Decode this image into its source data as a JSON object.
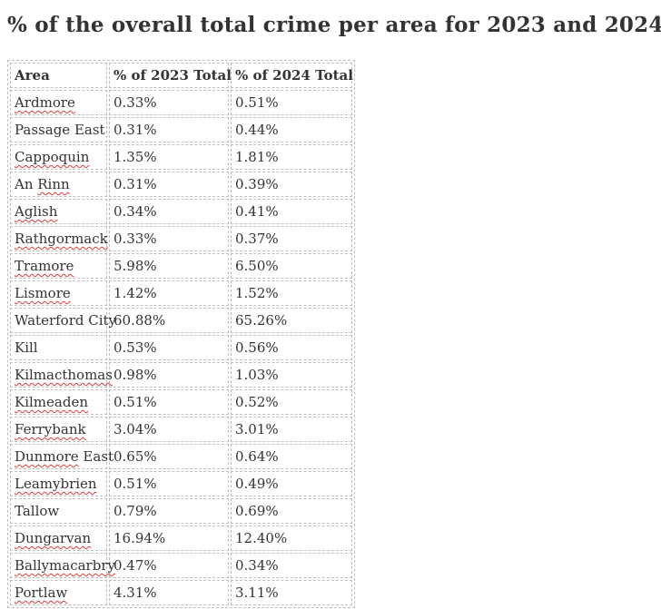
{
  "page": {
    "title": "% of the overall total crime per area for 2023 and 2024"
  },
  "table": {
    "columns": [
      "Area",
      "% of 2023 Total",
      "% of 2024 Total"
    ],
    "rows": [
      {
        "area": "Ardmore",
        "squiggle": "Ardmore",
        "pct_2023": "0.33%",
        "pct_2024": "0.51%"
      },
      {
        "area": "Passage East",
        "squiggle": "",
        "pct_2023": "0.31%",
        "pct_2024": "0.44%"
      },
      {
        "area": "Cappoquin",
        "squiggle": "Cappoquin",
        "pct_2023": "1.35%",
        "pct_2024": "1.81%"
      },
      {
        "area": "An Rinn",
        "squiggle": "Rinn",
        "pct_2023": "0.31%",
        "pct_2024": "0.39%"
      },
      {
        "area": "Aglish",
        "squiggle": "Aglish",
        "pct_2023": "0.34%",
        "pct_2024": "0.41%"
      },
      {
        "area": "Rathgormack",
        "squiggle": "Rathgormack",
        "pct_2023": "0.33%",
        "pct_2024": "0.37%"
      },
      {
        "area": "Tramore",
        "squiggle": "Tramore",
        "pct_2023": "5.98%",
        "pct_2024": "6.50%"
      },
      {
        "area": "Lismore",
        "squiggle": "Lismore",
        "pct_2023": "1.42%",
        "pct_2024": "1.52%"
      },
      {
        "area": "Waterford City",
        "squiggle": "",
        "pct_2023": "60.88%",
        "pct_2024": "65.26%"
      },
      {
        "area": "Kill",
        "squiggle": "",
        "pct_2023": "0.53%",
        "pct_2024": "0.56%"
      },
      {
        "area": "Kilmacthomas",
        "squiggle": "Kilmacthomas",
        "pct_2023": "0.98%",
        "pct_2024": "1.03%"
      },
      {
        "area": "Kilmeaden",
        "squiggle": "Kilmeaden",
        "pct_2023": "0.51%",
        "pct_2024": "0.52%"
      },
      {
        "area": "Ferrybank",
        "squiggle": "Ferrybank",
        "pct_2023": "3.04%",
        "pct_2024": "3.01%"
      },
      {
        "area": "Dunmore East",
        "squiggle": "Dunmore",
        "pct_2023": "0.65%",
        "pct_2024": "0.64%"
      },
      {
        "area": "Leamybrien",
        "squiggle": "Leamybrien",
        "pct_2023": "0.51%",
        "pct_2024": "0.49%"
      },
      {
        "area": "Tallow",
        "squiggle": "",
        "pct_2023": "0.79%",
        "pct_2024": "0.69%"
      },
      {
        "area": "Dungarvan",
        "squiggle": "Dungarvan",
        "pct_2023": "16.94%",
        "pct_2024": "12.40%"
      },
      {
        "area": "Ballymacarbry",
        "squiggle": "Ballymacarbry",
        "pct_2023": "0.47%",
        "pct_2024": "0.34%"
      },
      {
        "area": "Portlaw",
        "squiggle": "Portlaw",
        "pct_2023": "4.31%",
        "pct_2024": "3.11%"
      }
    ]
  },
  "colors": {
    "background": "#ffffff",
    "heading_text": "#333333",
    "body_text": "#333333",
    "table_border": "#bfbfbf",
    "spellcheck_red": "#e03a3a"
  },
  "chart_data": {
    "type": "table",
    "title": "% of the overall total crime per area for 2023 and 2024",
    "columns": [
      "Area",
      "% of 2023 Total",
      "% of 2024 Total"
    ],
    "areas": [
      "Ardmore",
      "Passage East",
      "Cappoquin",
      "An Rinn",
      "Aglish",
      "Rathgormack",
      "Tramore",
      "Lismore",
      "Waterford City",
      "Kill",
      "Kilmacthomas",
      "Kilmeaden",
      "Ferrybank",
      "Dunmore East",
      "Leamybrien",
      "Tallow",
      "Dungarvan",
      "Ballymacarbry",
      "Portlaw"
    ],
    "pct_2023_values": [
      0.33,
      0.31,
      1.35,
      0.31,
      0.34,
      0.33,
      5.98,
      1.42,
      60.88,
      0.53,
      0.98,
      0.51,
      3.04,
      0.65,
      0.51,
      0.79,
      16.94,
      0.47,
      4.31
    ],
    "pct_2024_values": [
      0.51,
      0.44,
      1.81,
      0.39,
      0.41,
      0.37,
      6.5,
      1.52,
      65.26,
      0.56,
      1.03,
      0.52,
      3.01,
      0.64,
      0.49,
      0.69,
      12.4,
      0.34,
      3.11
    ]
  }
}
